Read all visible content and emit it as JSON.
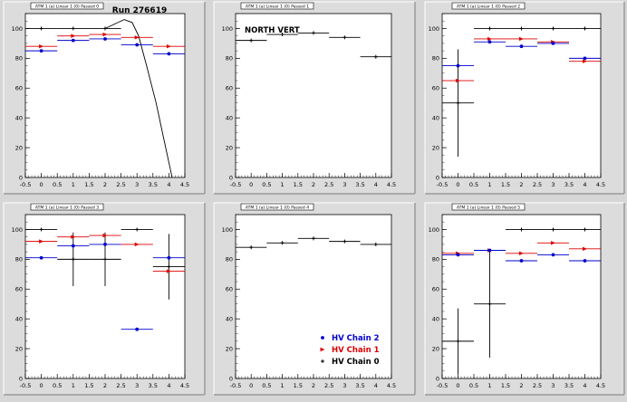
{
  "run_label": "Run 276619",
  "north_vert_label": "NORTH VERT",
  "legend": [
    {
      "name": "HV Chain 2",
      "color": "#0000cc",
      "marker": "dot"
    },
    {
      "name": "HV Chain 1",
      "color": "#dd0000",
      "marker": "tri"
    },
    {
      "name": "HV Chain 0",
      "color": "#000000",
      "marker": "plus"
    }
  ],
  "colors": {
    "chain0": "#000000",
    "chain1": "#dd0000",
    "chain2": "#0000cc",
    "panel_bg": "#ffffff",
    "frame_bg": "#d6d6d6"
  },
  "chart_data": [
    {
      "type": "scatter",
      "title_tab": "ATM 1 (a) Linear 1 (0) Passed 0",
      "xlim": [
        -0.5,
        4.5
      ],
      "ylim": [
        0,
        110
      ],
      "xticks": [
        "-0.5",
        "0",
        "0.5",
        "1",
        "1.5",
        "2",
        "2.5",
        "3",
        "3.5",
        "4",
        "4.5"
      ],
      "yticks": [
        "0",
        "20",
        "40",
        "60",
        "80",
        "100"
      ],
      "series": [
        {
          "key": "chain0",
          "points": [
            {
              "x": 0,
              "y": 100,
              "xerr": 0.5,
              "yerr": 0
            },
            {
              "x": 1,
              "y": 100,
              "xerr": 0.5,
              "yerr": 0
            },
            {
              "x": 2,
              "y": 100,
              "xerr": 0.5,
              "yerr": 0
            }
          ]
        },
        {
          "key": "chain1",
          "points": [
            {
              "x": 0,
              "y": 88,
              "xerr": 0.5,
              "yerr": 0
            },
            {
              "x": 1,
              "y": 95,
              "xerr": 0.5,
              "yerr": 0
            },
            {
              "x": 2,
              "y": 96,
              "xerr": 0.5,
              "yerr": 0
            },
            {
              "x": 3,
              "y": 94,
              "xerr": 0.5,
              "yerr": 0
            },
            {
              "x": 4,
              "y": 88,
              "xerr": 0.5,
              "yerr": 0
            }
          ]
        },
        {
          "key": "chain2",
          "points": [
            {
              "x": 0,
              "y": 85,
              "xerr": 0.5,
              "yerr": 0
            },
            {
              "x": 1,
              "y": 92,
              "xerr": 0.5,
              "yerr": 0
            },
            {
              "x": 2,
              "y": 93,
              "xerr": 0.5,
              "yerr": 0
            },
            {
              "x": 3,
              "y": 89,
              "xerr": 0.5,
              "yerr": 0
            },
            {
              "x": 4,
              "y": 83,
              "xerr": 0.5,
              "yerr": 0
            }
          ]
        }
      ],
      "fit_curve": [
        [
          2.0,
          100
        ],
        [
          2.3,
          103
        ],
        [
          2.6,
          106
        ],
        [
          2.85,
          104
        ],
        [
          3.05,
          95
        ],
        [
          3.3,
          75
        ],
        [
          3.6,
          50
        ],
        [
          3.85,
          25
        ],
        [
          4.05,
          5
        ],
        [
          4.1,
          0
        ]
      ]
    },
    {
      "type": "scatter",
      "title_tab": "ATM 1 (a) Linear 1 (0) Passed 1",
      "xlim": [
        -0.5,
        4.5
      ],
      "ylim": [
        0,
        110
      ],
      "xticks": [
        "-0.5",
        "0",
        "0.5",
        "1",
        "1.5",
        "2",
        "2.5",
        "3",
        "3.5",
        "4",
        "4.5"
      ],
      "yticks": [
        "0",
        "20",
        "40",
        "60",
        "80",
        "100"
      ],
      "series": [
        {
          "key": "chain0",
          "points": [
            {
              "x": 0,
              "y": 92,
              "xerr": 0.5,
              "yerr": 0
            },
            {
              "x": 1,
              "y": 96,
              "xerr": 0.5,
              "yerr": 0
            },
            {
              "x": 2,
              "y": 97,
              "xerr": 0.5,
              "yerr": 0
            },
            {
              "x": 3,
              "y": 94,
              "xerr": 0.5,
              "yerr": 0
            },
            {
              "x": 4,
              "y": 81,
              "xerr": 0.5,
              "yerr": 0
            }
          ]
        }
      ]
    },
    {
      "type": "scatter",
      "title_tab": "ATM 1 (a) Linear 1 (0) Passed 2",
      "xlim": [
        -0.5,
        4.5
      ],
      "ylim": [
        0,
        110
      ],
      "xticks": [
        "-0.5",
        "0",
        "0.5",
        "1",
        "1.5",
        "2",
        "2.5",
        "3",
        "3.5",
        "4",
        "4.5"
      ],
      "yticks": [
        "0",
        "20",
        "40",
        "60",
        "80",
        "100"
      ],
      "series": [
        {
          "key": "chain0",
          "points": [
            {
              "x": 0,
              "y": 50,
              "xerr": 0.5,
              "yerr": 36
            },
            {
              "x": 1,
              "y": 100,
              "xerr": 0.5,
              "yerr": 0
            },
            {
              "x": 2,
              "y": 100,
              "xerr": 0.5,
              "yerr": 0
            },
            {
              "x": 3,
              "y": 100,
              "xerr": 0.5,
              "yerr": 0
            },
            {
              "x": 4,
              "y": 100,
              "xerr": 0.5,
              "yerr": 0
            }
          ]
        },
        {
          "key": "chain1",
          "points": [
            {
              "x": 0,
              "y": 65,
              "xerr": 0.5,
              "yerr": 0
            },
            {
              "x": 1,
              "y": 93,
              "xerr": 0.5,
              "yerr": 0
            },
            {
              "x": 2,
              "y": 93,
              "xerr": 0.5,
              "yerr": 0
            },
            {
              "x": 3,
              "y": 91,
              "xerr": 0.5,
              "yerr": 0
            },
            {
              "x": 4,
              "y": 78,
              "xerr": 0.5,
              "yerr": 0
            }
          ]
        },
        {
          "key": "chain2",
          "points": [
            {
              "x": 0,
              "y": 75,
              "xerr": 0.5,
              "yerr": 0
            },
            {
              "x": 1,
              "y": 91,
              "xerr": 0.5,
              "yerr": 0
            },
            {
              "x": 2,
              "y": 88,
              "xerr": 0.5,
              "yerr": 0
            },
            {
              "x": 3,
              "y": 90,
              "xerr": 0.5,
              "yerr": 0
            },
            {
              "x": 4,
              "y": 80,
              "xerr": 0.5,
              "yerr": 0
            }
          ]
        }
      ]
    },
    {
      "type": "scatter",
      "title_tab": "ATM 1 (a) Linear 1 (0) Passed 3",
      "xlim": [
        -0.5,
        4.5
      ],
      "ylim": [
        0,
        110
      ],
      "xticks": [
        "-0.5",
        "0",
        "0.5",
        "1",
        "1.5",
        "2",
        "2.5",
        "3",
        "3.5",
        "4",
        "4.5"
      ],
      "yticks": [
        "0",
        "20",
        "40",
        "60",
        "80",
        "100"
      ],
      "series": [
        {
          "key": "chain0",
          "points": [
            {
              "x": 0,
              "y": 100,
              "xerr": 0.5,
              "yerr": 0
            },
            {
              "x": 1,
              "y": 80,
              "xerr": 0.5,
              "yerr": 18
            },
            {
              "x": 2,
              "y": 80,
              "xerr": 0.5,
              "yerr": 18
            },
            {
              "x": 3,
              "y": 100,
              "xerr": 0.5,
              "yerr": 0
            },
            {
              "x": 4,
              "y": 75,
              "xerr": 0.5,
              "yerr": 22
            }
          ]
        },
        {
          "key": "chain1",
          "points": [
            {
              "x": 0,
              "y": 92,
              "xerr": 0.5,
              "yerr": 0
            },
            {
              "x": 1,
              "y": 95,
              "xerr": 0.5,
              "yerr": 0
            },
            {
              "x": 2,
              "y": 96,
              "xerr": 0.5,
              "yerr": 0
            },
            {
              "x": 3,
              "y": 90,
              "xerr": 0.5,
              "yerr": 0
            },
            {
              "x": 4,
              "y": 72,
              "xerr": 0.5,
              "yerr": 0
            }
          ]
        },
        {
          "key": "chain2",
          "points": [
            {
              "x": 0,
              "y": 81,
              "xerr": 0.5,
              "yerr": 0
            },
            {
              "x": 1,
              "y": 89,
              "xerr": 0.5,
              "yerr": 0
            },
            {
              "x": 2,
              "y": 90,
              "xerr": 0.5,
              "yerr": 0
            },
            {
              "x": 3,
              "y": 33,
              "xerr": 0.5,
              "yerr": 0
            },
            {
              "x": 4,
              "y": 81,
              "xerr": 0.5,
              "yerr": 0
            }
          ]
        }
      ]
    },
    {
      "type": "scatter",
      "title_tab": "ATM 1 (a) Linear 1 (0) Passed 4",
      "xlim": [
        -0.5,
        4.5
      ],
      "ylim": [
        0,
        110
      ],
      "xticks": [
        "-0.5",
        "0",
        "0.5",
        "1",
        "1.5",
        "2",
        "2.5",
        "3",
        "3.5",
        "4",
        "4.5"
      ],
      "yticks": [
        "0",
        "20",
        "40",
        "60",
        "80",
        "100"
      ],
      "series": [
        {
          "key": "chain0",
          "points": [
            {
              "x": 0,
              "y": 88,
              "xerr": 0.5,
              "yerr": 0
            },
            {
              "x": 1,
              "y": 91,
              "xerr": 0.5,
              "yerr": 0
            },
            {
              "x": 2,
              "y": 94,
              "xerr": 0.5,
              "yerr": 0
            },
            {
              "x": 3,
              "y": 92,
              "xerr": 0.5,
              "yerr": 0
            },
            {
              "x": 4,
              "y": 90,
              "xerr": 0.5,
              "yerr": 0
            }
          ]
        }
      ]
    },
    {
      "type": "scatter",
      "title_tab": "ATM 1 (a) Linear 1 (0) Passed 5",
      "xlim": [
        -0.5,
        4.5
      ],
      "ylim": [
        0,
        110
      ],
      "xticks": [
        "-0.5",
        "0",
        "0.5",
        "1",
        "1.5",
        "2",
        "2.5",
        "3",
        "3.5",
        "4",
        "4.5"
      ],
      "yticks": [
        "0",
        "20",
        "40",
        "60",
        "80",
        "100"
      ],
      "series": [
        {
          "key": "chain0",
          "points": [
            {
              "x": 0,
              "y": 25,
              "xerr": 0.5,
              "yerr": 22
            },
            {
              "x": 1,
              "y": 50,
              "xerr": 0.5,
              "yerr": 36
            },
            {
              "x": 2,
              "y": 100,
              "xerr": 0.5,
              "yerr": 0
            },
            {
              "x": 3,
              "y": 100,
              "xerr": 0.5,
              "yerr": 0
            },
            {
              "x": 4,
              "y": 100,
              "xerr": 0.5,
              "yerr": 0
            }
          ]
        },
        {
          "key": "chain1",
          "points": [
            {
              "x": 0,
              "y": 84,
              "xerr": 0.5,
              "yerr": 0
            },
            {
              "x": 1,
              "y": 86,
              "xerr": 0.5,
              "yerr": 0
            },
            {
              "x": 2,
              "y": 84,
              "xerr": 0.5,
              "yerr": 0
            },
            {
              "x": 3,
              "y": 91,
              "xerr": 0.5,
              "yerr": 0
            },
            {
              "x": 4,
              "y": 87,
              "xerr": 0.5,
              "yerr": 0
            }
          ]
        },
        {
          "key": "chain2",
          "points": [
            {
              "x": 0,
              "y": 83,
              "xerr": 0.5,
              "yerr": 0
            },
            {
              "x": 1,
              "y": 86,
              "xerr": 0.5,
              "yerr": 0
            },
            {
              "x": 2,
              "y": 79,
              "xerr": 0.5,
              "yerr": 0
            },
            {
              "x": 3,
              "y": 83,
              "xerr": 0.5,
              "yerr": 0
            },
            {
              "x": 4,
              "y": 79,
              "xerr": 0.5,
              "yerr": 0
            }
          ]
        }
      ]
    }
  ]
}
